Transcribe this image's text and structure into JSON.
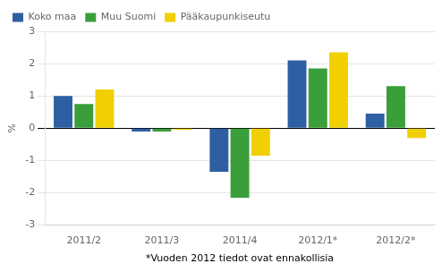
{
  "chart_data": {
    "type": "bar",
    "categories": [
      "2011/2",
      "2011/3",
      "2011/4",
      "2012/1*",
      "2012/2*"
    ],
    "series": [
      {
        "name": "Koko maa",
        "color": "#2e5fa3",
        "values": [
          1.0,
          -0.1,
          -1.35,
          2.1,
          0.45
        ]
      },
      {
        "name": "Muu Suomi",
        "color": "#3a9e3a",
        "values": [
          0.75,
          -0.1,
          -2.15,
          1.85,
          1.3
        ]
      },
      {
        "name": "Pääkaupunkiseutu",
        "color": "#f0d000",
        "values": [
          1.2,
          -0.05,
          -0.85,
          2.35,
          -0.3
        ]
      }
    ],
    "ylabel": "%",
    "xlabel": "*Vuoden 2012 tiedot ovat ennakollisia",
    "ylim": [
      -3,
      3
    ],
    "yticks": [
      -3,
      -2,
      -1,
      0,
      1,
      2,
      3
    ],
    "grid": true,
    "legend": "upper left"
  }
}
